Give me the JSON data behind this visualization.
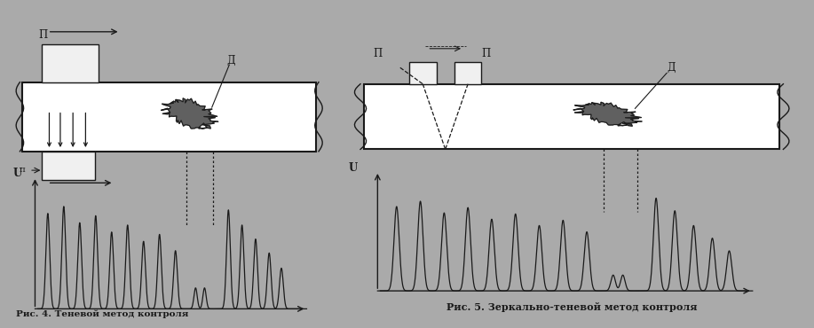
{
  "bg_color": "#aaaaaa",
  "white_color": "#ffffff",
  "black_color": "#1a1a1a",
  "caption1": "Рис. 4. Теневой метод контроля",
  "caption2": "Рис. 5. Зеркально-теневой метод контроля",
  "label_P": "П",
  "label_D": "Д",
  "label_n": "п",
  "label_U": "U",
  "fig_width": 9.17,
  "fig_height": 3.7,
  "dpi": 100
}
